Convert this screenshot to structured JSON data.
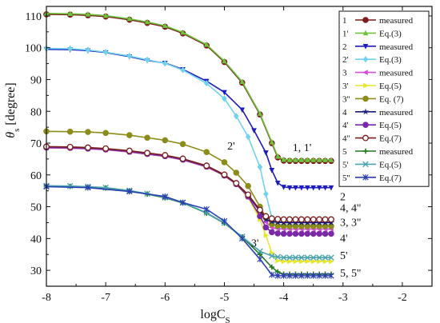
{
  "chart_data": {
    "type": "line",
    "xlabel": "logC",
    "xlabel_sub": "S",
    "ylabel": "θ",
    "ylabel_sub": "s",
    "ylabel_unit": " [degree]",
    "xlim": [
      -8,
      -1.5
    ],
    "ylim": [
      25,
      113
    ],
    "xticks": [
      -8,
      -7,
      -6,
      -5,
      -4,
      -3,
      -2
    ],
    "yticks": [
      30,
      40,
      50,
      60,
      70,
      80,
      90,
      100,
      110
    ],
    "legend_position": "right",
    "series": [
      {
        "name": "measured",
        "legend_id": "1",
        "color": "#7a1c1c",
        "marker": "circle",
        "x": [
          -8.0,
          -7.6,
          -7.3,
          -7.0,
          -6.6,
          -6.3,
          -6.0,
          -5.7,
          -5.3,
          -5.0,
          -4.7,
          -4.4,
          -4.2,
          -4.1,
          -4.0,
          -3.9,
          -3.8,
          -3.7,
          -3.6,
          -3.5,
          -3.4,
          -3.3,
          -3.2
        ],
        "y": [
          110.5,
          110.4,
          110.2,
          109.8,
          108.8,
          107.8,
          106.6,
          104.5,
          100.7,
          95.5,
          89.0,
          79.0,
          70.0,
          65.5,
          64.5,
          64.4,
          64.4,
          64.4,
          64.4,
          64.4,
          64.4,
          64.4,
          64.4
        ]
      },
      {
        "name": "Eq.(3)",
        "legend_id": "1'",
        "color": "#6ec23c",
        "marker": "triangle-up",
        "x": [
          -8.0,
          -7.6,
          -7.3,
          -7.0,
          -6.6,
          -6.3,
          -6.0,
          -5.7,
          -5.3,
          -5.0,
          -4.7,
          -4.4,
          -4.2,
          -4.1,
          -4.0,
          -3.9,
          -3.8,
          -3.7,
          -3.6,
          -3.5,
          -3.4,
          -3.3,
          -3.2
        ],
        "y": [
          110.8,
          110.7,
          110.5,
          110.1,
          109.1,
          108.1,
          106.9,
          104.8,
          101.0,
          95.8,
          89.3,
          79.3,
          70.3,
          65.8,
          64.8,
          64.7,
          64.7,
          64.7,
          64.7,
          64.7,
          64.7,
          64.7,
          64.7
        ]
      },
      {
        "name": "measured",
        "legend_id": "2",
        "color": "#1c1cbf",
        "marker": "triangle-down",
        "x": [
          -8.0,
          -7.6,
          -7.3,
          -7.0,
          -6.6,
          -6.3,
          -6.0,
          -5.7,
          -5.3,
          -5.0,
          -4.7,
          -4.5,
          -4.3,
          -4.2,
          -4.1,
          -4.0,
          -3.9,
          -3.8,
          -3.7,
          -3.6,
          -3.5,
          -3.4,
          -3.3,
          -3.2
        ],
        "y": [
          99.5,
          99.4,
          99.1,
          98.5,
          97.2,
          96.0,
          95.2,
          93.2,
          89.5,
          86.0,
          80.5,
          74.0,
          67.0,
          61.5,
          57.5,
          56.2,
          56.0,
          56.0,
          56.0,
          56.0,
          56.0,
          56.0,
          56.0,
          56.0
        ]
      },
      {
        "name": "Eq.(3)",
        "legend_id": "2'",
        "color": "#6fd3f0",
        "marker": "diamond",
        "x": [
          -8.0,
          -7.6,
          -7.3,
          -7.0,
          -6.6,
          -6.3,
          -6.0,
          -5.7,
          -5.3,
          -5.0,
          -4.8,
          -4.6,
          -4.4,
          -4.3,
          -4.2,
          -4.1,
          -4.0,
          -3.9,
          -3.8,
          -3.7,
          -3.6,
          -3.5,
          -3.4,
          -3.3,
          -3.2
        ],
        "y": [
          99.8,
          99.7,
          99.3,
          98.6,
          97.4,
          96.2,
          95.1,
          93.0,
          88.8,
          84.0,
          78.5,
          72.0,
          62.5,
          54.0,
          46.5,
          44.5,
          44.3,
          44.3,
          44.3,
          44.3,
          44.3,
          44.3,
          44.3,
          44.3,
          44.3
        ]
      },
      {
        "name": "measured",
        "legend_id": "3",
        "color": "#d04fd6",
        "marker": "triangle-left",
        "x": [
          -8.0,
          -7.6,
          -7.3,
          -7.0,
          -6.6,
          -6.3,
          -6.0,
          -5.7,
          -5.3,
          -5.0,
          -4.8,
          -4.6,
          -4.4,
          -4.3,
          -4.2,
          -4.1,
          -4.0,
          -3.9,
          -3.8,
          -3.7,
          -3.6,
          -3.5,
          -3.4,
          -3.3,
          -3.2
        ],
        "y": [
          68.5,
          68.4,
          68.2,
          67.9,
          67.2,
          66.5,
          65.8,
          64.7,
          62.5,
          59.8,
          57.2,
          53.5,
          48.5,
          45.2,
          43.5,
          43.1,
          43.0,
          43.0,
          43.0,
          43.0,
          43.0,
          43.0,
          43.0,
          43.0,
          43.0
        ]
      },
      {
        "name": "Eq.(5)",
        "legend_id": "3'",
        "color": "#e6e62a",
        "marker": "triangle-right",
        "x": [
          -8.0,
          -7.6,
          -7.3,
          -7.0,
          -6.6,
          -6.3,
          -6.0,
          -5.7,
          -5.3,
          -5.0,
          -4.8,
          -4.6,
          -4.4,
          -4.3,
          -4.2,
          -4.1,
          -4.0,
          -3.9,
          -3.8,
          -3.7,
          -3.6,
          -3.5,
          -3.4,
          -3.3,
          -3.2
        ],
        "y": [
          68.6,
          68.5,
          68.3,
          68.0,
          67.3,
          66.6,
          65.9,
          64.8,
          62.6,
          59.7,
          57.0,
          53.0,
          46.0,
          41.0,
          35.5,
          33.0,
          32.8,
          32.8,
          32.8,
          32.8,
          32.8,
          32.8,
          32.8,
          32.8,
          32.8
        ]
      },
      {
        "name": "Eq. (7)",
        "legend_id": "3''",
        "color": "#8c8c1a",
        "marker": "circle",
        "x": [
          -8.0,
          -7.6,
          -7.3,
          -7.0,
          -6.6,
          -6.3,
          -6.0,
          -5.7,
          -5.3,
          -5.0,
          -4.8,
          -4.6,
          -4.4,
          -4.3,
          -4.2,
          -4.1,
          -4.0,
          -3.9,
          -3.8,
          -3.7,
          -3.6,
          -3.5,
          -3.4,
          -3.3,
          -3.2
        ],
        "y": [
          73.7,
          73.6,
          73.5,
          73.2,
          72.5,
          71.7,
          70.9,
          69.7,
          67.2,
          64.0,
          60.7,
          56.5,
          50.0,
          46.5,
          44.5,
          44.0,
          43.9,
          43.9,
          43.9,
          43.9,
          43.9,
          43.9,
          43.9,
          43.9,
          43.9
        ]
      },
      {
        "name": "measured",
        "legend_id": "4",
        "color": "#1a1a7a",
        "marker": "star",
        "x": [
          -8.0,
          -7.6,
          -7.3,
          -7.0,
          -6.6,
          -6.3,
          -6.0,
          -5.7,
          -5.3,
          -5.0,
          -4.8,
          -4.6,
          -4.4,
          -4.3,
          -4.2,
          -4.1,
          -4.0,
          -3.9,
          -3.8,
          -3.7,
          -3.6,
          -3.5,
          -3.4,
          -3.3,
          -3.2
        ],
        "y": [
          68.8,
          68.7,
          68.5,
          68.2,
          67.5,
          66.8,
          66.1,
          65.0,
          62.8,
          60.0,
          57.3,
          53.6,
          48.7,
          46.0,
          45.3,
          45.1,
          45.0,
          45.0,
          45.0,
          45.0,
          45.0,
          45.0,
          45.0,
          45.0,
          45.0
        ]
      },
      {
        "name": "Eq.(5)",
        "legend_id": "4'",
        "color": "#7a2aa6",
        "marker": "circle",
        "x": [
          -8.0,
          -7.6,
          -7.3,
          -7.0,
          -6.6,
          -6.3,
          -6.0,
          -5.7,
          -5.3,
          -5.0,
          -4.8,
          -4.6,
          -4.4,
          -4.3,
          -4.2,
          -4.1,
          -4.0,
          -3.9,
          -3.8,
          -3.7,
          -3.6,
          -3.5,
          -3.4,
          -3.3,
          -3.2
        ],
        "y": [
          68.6,
          68.5,
          68.3,
          68.0,
          67.3,
          66.6,
          65.9,
          64.8,
          62.6,
          59.8,
          57.1,
          53.2,
          47.0,
          43.5,
          42.0,
          41.6,
          41.5,
          41.5,
          41.5,
          41.5,
          41.5,
          41.5,
          41.5,
          41.5,
          41.5
        ]
      },
      {
        "name": "Eq.(7)",
        "legend_id": "4''",
        "color": "#7a1c1c",
        "marker": "circle-open",
        "x": [
          -8.0,
          -7.6,
          -7.3,
          -7.0,
          -6.6,
          -6.3,
          -6.0,
          -5.7,
          -5.3,
          -5.0,
          -4.8,
          -4.6,
          -4.4,
          -4.3,
          -4.2,
          -4.1,
          -4.0,
          -3.9,
          -3.8,
          -3.7,
          -3.6,
          -3.5,
          -3.4,
          -3.3,
          -3.2
        ],
        "y": [
          68.9,
          68.8,
          68.6,
          68.3,
          67.6,
          66.9,
          66.2,
          65.1,
          62.9,
          60.1,
          57.4,
          53.8,
          49.0,
          47.0,
          46.3,
          46.1,
          46.0,
          46.0,
          46.0,
          46.0,
          46.0,
          46.0,
          46.0,
          46.0,
          46.0
        ]
      },
      {
        "name": "measured",
        "legend_id": "5",
        "color": "#1e7a1e",
        "marker": "cross",
        "x": [
          -8.0,
          -7.6,
          -7.3,
          -7.0,
          -6.6,
          -6.3,
          -6.0,
          -5.7,
          -5.3,
          -5.0,
          -4.7,
          -4.4,
          -4.2,
          -4.1,
          -4.0,
          -3.9,
          -3.8,
          -3.7,
          -3.6,
          -3.5,
          -3.4,
          -3.3,
          -3.2
        ],
        "y": [
          56.5,
          56.4,
          56.2,
          55.9,
          55.0,
          54.0,
          52.8,
          51.2,
          48.0,
          44.8,
          40.5,
          35.0,
          31.0,
          29.5,
          28.8,
          28.8,
          28.8,
          28.8,
          28.8,
          28.8,
          28.8,
          28.8,
          28.8
        ]
      },
      {
        "name": "Eq.(5)",
        "legend_id": "5'",
        "color": "#4aa3b0",
        "marker": "x",
        "x": [
          -8.0,
          -7.6,
          -7.3,
          -7.0,
          -6.6,
          -6.3,
          -6.0,
          -5.7,
          -5.3,
          -5.0,
          -4.7,
          -4.4,
          -4.2,
          -4.1,
          -4.0,
          -3.9,
          -3.8,
          -3.7,
          -3.6,
          -3.5,
          -3.4,
          -3.3,
          -3.2
        ],
        "y": [
          56.6,
          56.5,
          56.3,
          56.0,
          55.1,
          54.1,
          52.9,
          51.3,
          48.1,
          44.9,
          40.6,
          36.0,
          34.5,
          34.2,
          34.0,
          34.0,
          34.0,
          34.0,
          34.0,
          34.0,
          34.0,
          34.0,
          34.0
        ]
      },
      {
        "name": "Eq.(7)",
        "legend_id": "5''",
        "color": "#2a3fb0",
        "marker": "asterisk",
        "x": [
          -8.0,
          -7.3,
          -6.6,
          -6.0,
          -5.7,
          -5.3,
          -5.0,
          -4.7,
          -4.4,
          -4.2,
          -4.1,
          -4.0,
          -3.9,
          -3.8,
          -3.7,
          -3.6,
          -3.5,
          -3.4,
          -3.3,
          -3.2
        ],
        "y": [
          56.3,
          56.0,
          54.8,
          53.2,
          51.3,
          49.2,
          45.5,
          40.0,
          33.5,
          28.6,
          28.3,
          28.3,
          28.3,
          28.3,
          28.3,
          28.3,
          28.3,
          28.3,
          28.3,
          28.3
        ]
      }
    ],
    "annotations": [
      {
        "text": "1, 1'",
        "x": -3.85,
        "y": 67.5
      },
      {
        "text": "2",
        "x": -3.05,
        "y": 52.0
      },
      {
        "text": "2'",
        "x": -4.95,
        "y": 68.0
      },
      {
        "text": "4, 4''",
        "x": -3.05,
        "y": 48.5
      },
      {
        "text": "3, 3''",
        "x": -3.05,
        "y": 44.0
      },
      {
        "text": "4'",
        "x": -3.05,
        "y": 39.0
      },
      {
        "text": "3'",
        "x": -4.55,
        "y": 37.5
      },
      {
        "text": "5'",
        "x": -3.05,
        "y": 33.5
      },
      {
        "text": "5, 5''",
        "x": -3.05,
        "y": 28.0
      }
    ]
  }
}
